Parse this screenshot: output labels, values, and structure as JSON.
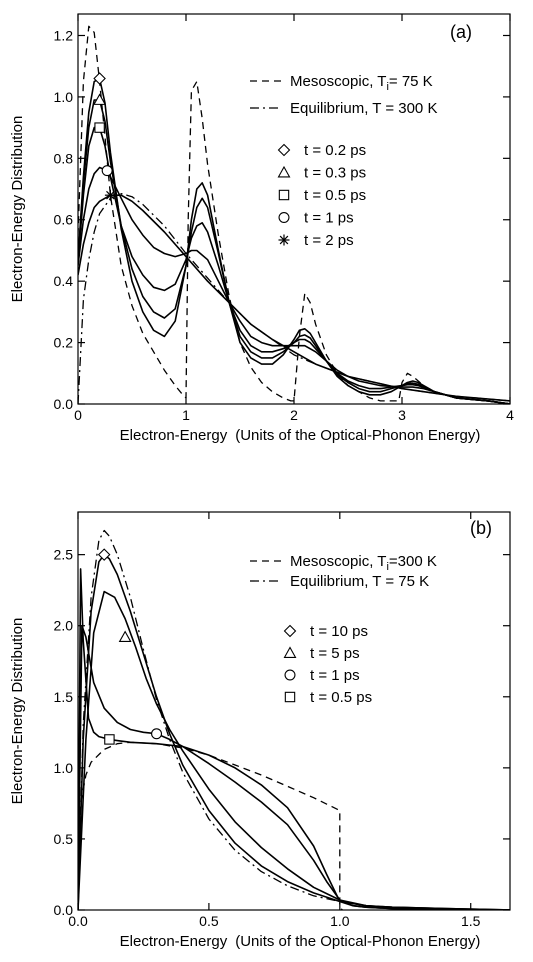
{
  "chart_data": [
    {
      "type": "line",
      "panel_label": "(a)",
      "xlabel": "Electron-Energy",
      "xlabel_units": "(Units of the Optical-Phonon Energy)",
      "ylabel": "Electron-Energy Distribution",
      "xlim": [
        0,
        4
      ],
      "ylim": [
        0,
        1.27
      ],
      "xticks": [
        0,
        1,
        2,
        3,
        4
      ],
      "xtick_labels": [
        "0",
        "1",
        "2",
        "3",
        "4"
      ],
      "yticks": [
        0,
        0.2,
        0.4,
        0.6,
        0.8,
        1.0,
        1.2
      ],
      "ytick_labels": [
        "0.0",
        "0.2",
        "0.4",
        "0.6",
        "0.8",
        "1.0",
        "1.2"
      ],
      "legend": {
        "lines": [
          {
            "style": "dashed",
            "label_main": "Mesoscopic, T",
            "label_sub": "i",
            "label_rest": "= 75 K"
          },
          {
            "style": "dashdot",
            "label_main": "Equilibrium, T = 300 K",
            "label_sub": "",
            "label_rest": ""
          }
        ],
        "markers": [
          {
            "marker": "diamond",
            "label": "t = 0.2 ps"
          },
          {
            "marker": "triangle",
            "label": "t = 0.3 ps"
          },
          {
            "marker": "square",
            "label": "t = 0.5 ps"
          },
          {
            "marker": "circle",
            "label": "t = 1 ps"
          },
          {
            "marker": "asterisk",
            "label": "t = 2 ps"
          }
        ]
      },
      "series": [
        {
          "style": "dashed",
          "x": [
            0,
            0.05,
            0.1,
            0.15,
            0.2,
            0.25,
            0.3,
            0.4,
            0.5,
            0.6,
            0.7,
            0.8,
            0.9,
            0.97,
            1.0,
            1.02,
            1.05,
            1.1,
            1.15,
            1.2,
            1.3,
            1.4,
            1.5,
            1.6,
            1.7,
            1.8,
            1.9,
            1.97,
            2.0,
            2.05,
            2.1,
            2.15,
            2.2,
            2.3,
            2.4,
            2.5,
            2.6,
            2.7,
            2.8,
            2.9,
            2.97,
            3.0,
            3.05,
            3.1,
            3.2,
            3.3,
            3.5,
            3.8,
            4.0
          ],
          "y": [
            0.55,
            1.05,
            1.23,
            1.21,
            1.05,
            0.87,
            0.68,
            0.45,
            0.32,
            0.23,
            0.17,
            0.11,
            0.06,
            0.03,
            0.02,
            0.6,
            1.02,
            1.05,
            0.93,
            0.78,
            0.55,
            0.35,
            0.2,
            0.12,
            0.07,
            0.04,
            0.02,
            0.01,
            0.01,
            0.22,
            0.36,
            0.33,
            0.26,
            0.16,
            0.1,
            0.06,
            0.04,
            0.02,
            0.01,
            0.01,
            0.01,
            0.07,
            0.1,
            0.09,
            0.06,
            0.04,
            0.02,
            0.01,
            0.0
          ]
        },
        {
          "style": "dashdot",
          "x": [
            0,
            0.05,
            0.1,
            0.15,
            0.2,
            0.3,
            0.4,
            0.5,
            0.6,
            0.8,
            1.0,
            1.2,
            1.4,
            1.6,
            1.8,
            2.0,
            2.2,
            2.5,
            3.0,
            3.5,
            4.0
          ],
          "y": [
            0.0,
            0.34,
            0.47,
            0.56,
            0.62,
            0.67,
            0.685,
            0.675,
            0.65,
            0.58,
            0.49,
            0.41,
            0.33,
            0.26,
            0.21,
            0.16,
            0.13,
            0.09,
            0.05,
            0.025,
            0.01
          ]
        },
        {
          "name": "t = 0.2 ps",
          "marker": "diamond",
          "marker_at": [
            0.2,
            1.06
          ],
          "x": [
            0,
            0.05,
            0.1,
            0.15,
            0.2,
            0.25,
            0.3,
            0.4,
            0.5,
            0.6,
            0.7,
            0.8,
            0.9,
            1.0,
            1.05,
            1.1,
            1.15,
            1.2,
            1.3,
            1.4,
            1.5,
            1.6,
            1.7,
            1.8,
            1.9,
            2.0,
            2.05,
            2.1,
            2.15,
            2.2,
            2.3,
            2.4,
            2.5,
            2.6,
            2.7,
            2.8,
            2.9,
            3.0,
            3.05,
            3.1,
            3.15,
            3.2,
            3.3,
            3.5,
            3.8,
            4.0
          ],
          "y": [
            0.47,
            0.74,
            0.95,
            1.05,
            1.06,
            0.98,
            0.82,
            0.57,
            0.4,
            0.3,
            0.24,
            0.22,
            0.27,
            0.45,
            0.6,
            0.7,
            0.72,
            0.68,
            0.5,
            0.33,
            0.2,
            0.15,
            0.13,
            0.13,
            0.16,
            0.21,
            0.24,
            0.245,
            0.23,
            0.2,
            0.14,
            0.09,
            0.06,
            0.04,
            0.03,
            0.03,
            0.04,
            0.06,
            0.07,
            0.075,
            0.07,
            0.06,
            0.04,
            0.02,
            0.01,
            0.0
          ]
        },
        {
          "name": "t = 0.3 ps",
          "marker": "triangle",
          "marker_at": [
            0.2,
            0.99
          ],
          "x": [
            0,
            0.05,
            0.1,
            0.15,
            0.2,
            0.25,
            0.3,
            0.4,
            0.5,
            0.6,
            0.7,
            0.8,
            0.9,
            1.0,
            1.05,
            1.1,
            1.15,
            1.2,
            1.3,
            1.4,
            1.5,
            1.6,
            1.7,
            1.8,
            1.9,
            2.0,
            2.05,
            2.1,
            2.15,
            2.2,
            2.3,
            2.4,
            2.5,
            2.6,
            2.7,
            2.8,
            2.9,
            3.0,
            3.05,
            3.1,
            3.15,
            3.2,
            3.3,
            3.5,
            3.8,
            4.0
          ],
          "y": [
            0.47,
            0.72,
            0.9,
            0.99,
            0.99,
            0.92,
            0.79,
            0.58,
            0.44,
            0.35,
            0.3,
            0.28,
            0.31,
            0.45,
            0.56,
            0.64,
            0.67,
            0.64,
            0.49,
            0.33,
            0.22,
            0.17,
            0.15,
            0.15,
            0.17,
            0.2,
            0.22,
            0.225,
            0.215,
            0.19,
            0.14,
            0.095,
            0.07,
            0.05,
            0.04,
            0.04,
            0.05,
            0.06,
            0.066,
            0.068,
            0.064,
            0.056,
            0.04,
            0.02,
            0.01,
            0.0
          ]
        },
        {
          "name": "t = 0.5 ps",
          "marker": "square",
          "marker_at": [
            0.2,
            0.9
          ],
          "x": [
            0,
            0.05,
            0.1,
            0.15,
            0.2,
            0.25,
            0.3,
            0.4,
            0.5,
            0.6,
            0.7,
            0.8,
            0.9,
            1.0,
            1.05,
            1.1,
            1.15,
            1.2,
            1.3,
            1.4,
            1.5,
            1.6,
            1.7,
            1.8,
            1.9,
            2.0,
            2.05,
            2.1,
            2.15,
            2.2,
            2.3,
            2.4,
            2.5,
            2.6,
            2.7,
            2.8,
            2.9,
            3.0,
            3.05,
            3.1,
            3.15,
            3.2,
            3.3,
            3.5,
            3.8,
            4.0
          ],
          "y": [
            0.46,
            0.68,
            0.84,
            0.9,
            0.9,
            0.84,
            0.74,
            0.58,
            0.48,
            0.42,
            0.38,
            0.37,
            0.39,
            0.47,
            0.54,
            0.58,
            0.59,
            0.56,
            0.45,
            0.33,
            0.24,
            0.19,
            0.17,
            0.17,
            0.18,
            0.2,
            0.21,
            0.21,
            0.2,
            0.18,
            0.14,
            0.1,
            0.075,
            0.06,
            0.05,
            0.05,
            0.055,
            0.06,
            0.063,
            0.063,
            0.06,
            0.054,
            0.04,
            0.02,
            0.01,
            0.0
          ]
        },
        {
          "name": "t = 1 ps",
          "marker": "circle",
          "marker_at": [
            0.27,
            0.76
          ],
          "x": [
            0,
            0.05,
            0.1,
            0.15,
            0.2,
            0.27,
            0.3,
            0.4,
            0.5,
            0.6,
            0.7,
            0.8,
            0.9,
            1.0,
            1.05,
            1.1,
            1.2,
            1.3,
            1.4,
            1.5,
            1.6,
            1.7,
            1.8,
            1.9,
            2.0,
            2.1,
            2.2,
            2.3,
            2.4,
            2.5,
            2.6,
            2.8,
            3.0,
            3.1,
            3.2,
            3.3,
            3.5,
            3.8,
            4.0
          ],
          "y": [
            0.45,
            0.6,
            0.7,
            0.75,
            0.77,
            0.76,
            0.74,
            0.67,
            0.6,
            0.55,
            0.51,
            0.49,
            0.48,
            0.49,
            0.5,
            0.5,
            0.47,
            0.4,
            0.33,
            0.27,
            0.22,
            0.2,
            0.19,
            0.19,
            0.19,
            0.19,
            0.17,
            0.14,
            0.11,
            0.09,
            0.075,
            0.06,
            0.055,
            0.055,
            0.05,
            0.04,
            0.02,
            0.01,
            0.0
          ]
        },
        {
          "name": "t = 2 ps",
          "marker": "asterisk",
          "marker_at": [
            0.3,
            0.68
          ],
          "x": [
            0,
            0.05,
            0.1,
            0.15,
            0.2,
            0.3,
            0.4,
            0.5,
            0.6,
            0.8,
            1.0,
            1.2,
            1.4,
            1.6,
            1.8,
            2.0,
            2.2,
            2.5,
            3.0,
            3.5,
            4.0
          ],
          "y": [
            0.42,
            0.52,
            0.59,
            0.64,
            0.66,
            0.68,
            0.68,
            0.66,
            0.63,
            0.56,
            0.48,
            0.4,
            0.33,
            0.26,
            0.21,
            0.17,
            0.13,
            0.09,
            0.05,
            0.025,
            0.01
          ]
        }
      ]
    },
    {
      "type": "line",
      "panel_label": "(b)",
      "xlabel": "Electron-Energy",
      "xlabel_units": "(Units of the Optical-Phonon Energy)",
      "ylabel": "Electron-Energy Distribution",
      "xlim": [
        0,
        1.65
      ],
      "ylim": [
        0,
        2.8
      ],
      "xticks": [
        0,
        0.5,
        1.0,
        1.5
      ],
      "xtick_labels": [
        "0.0",
        "0.5",
        "1.0",
        "1.5"
      ],
      "yticks": [
        0,
        0.5,
        1.0,
        1.5,
        2.0,
        2.5
      ],
      "ytick_labels": [
        "0.0",
        "0.5",
        "1.0",
        "1.5",
        "2.0",
        "2.5"
      ],
      "legend": {
        "lines": [
          {
            "style": "dashed",
            "label_main": "Mesoscopic, T",
            "label_sub": "i",
            "label_rest": "=300 K"
          },
          {
            "style": "dashdot",
            "label_main": "Equilibrium, T = 75 K",
            "label_sub": "",
            "label_rest": ""
          }
        ],
        "markers": [
          {
            "marker": "diamond",
            "label": "t = 10 ps"
          },
          {
            "marker": "triangle",
            "label": "t = 5 ps"
          },
          {
            "marker": "circle",
            "label": "t = 1 ps"
          },
          {
            "marker": "square",
            "label": "t = 0.5 ps"
          }
        ]
      },
      "series": [
        {
          "style": "dashed",
          "x": [
            0,
            0.01,
            0.03,
            0.05,
            0.1,
            0.15,
            0.2,
            0.3,
            0.4,
            0.5,
            0.6,
            0.7,
            0.8,
            0.9,
            1.0,
            1.0,
            1.01
          ],
          "y": [
            0.0,
            0.75,
            0.95,
            1.04,
            1.13,
            1.17,
            1.18,
            1.17,
            1.14,
            1.09,
            1.02,
            0.95,
            0.87,
            0.79,
            0.7,
            0.02,
            0.0
          ]
        },
        {
          "style": "dashdot",
          "x": [
            0,
            0.02,
            0.05,
            0.08,
            0.1,
            0.12,
            0.15,
            0.2,
            0.25,
            0.3,
            0.35,
            0.4,
            0.5,
            0.6,
            0.7,
            0.8,
            0.9,
            1.0,
            1.1,
            1.2,
            1.4,
            1.65
          ],
          "y": [
            0.0,
            1.3,
            2.2,
            2.6,
            2.67,
            2.63,
            2.5,
            2.2,
            1.83,
            1.48,
            1.2,
            0.97,
            0.64,
            0.42,
            0.27,
            0.17,
            0.1,
            0.06,
            0.03,
            0.02,
            0.01,
            0.0
          ]
        },
        {
          "name": "t = 10 ps",
          "marker": "diamond",
          "marker_at": [
            0.1,
            2.5
          ],
          "x": [
            0,
            0.02,
            0.05,
            0.08,
            0.1,
            0.12,
            0.15,
            0.2,
            0.25,
            0.3,
            0.35,
            0.4,
            0.5,
            0.6,
            0.7,
            0.8,
            0.9,
            1.0,
            1.1,
            1.2,
            1.4,
            1.65
          ],
          "y": [
            0.0,
            1.2,
            2.1,
            2.45,
            2.5,
            2.47,
            2.36,
            2.1,
            1.8,
            1.5,
            1.24,
            1.02,
            0.7,
            0.47,
            0.31,
            0.2,
            0.12,
            0.06,
            0.03,
            0.02,
            0.01,
            0.0
          ]
        },
        {
          "name": "t = 5 ps",
          "marker": "triangle",
          "marker_at": [
            0.18,
            1.92
          ],
          "x": [
            0,
            0.03,
            0.06,
            0.1,
            0.14,
            0.18,
            0.22,
            0.26,
            0.3,
            0.35,
            0.4,
            0.5,
            0.6,
            0.7,
            0.8,
            0.9,
            1.0,
            1.1,
            1.2,
            1.4,
            1.65
          ],
          "y": [
            0.0,
            1.2,
            1.95,
            2.24,
            2.2,
            2.05,
            1.85,
            1.63,
            1.45,
            1.27,
            1.12,
            0.85,
            0.62,
            0.44,
            0.29,
            0.16,
            0.07,
            0.03,
            0.02,
            0.01,
            0.0
          ]
        },
        {
          "name": "t = 1 ps",
          "marker": "circle",
          "marker_at": [
            0.3,
            1.24
          ],
          "x": [
            0,
            0.015,
            0.03,
            0.06,
            0.1,
            0.15,
            0.2,
            0.25,
            0.3,
            0.35,
            0.4,
            0.5,
            0.6,
            0.7,
            0.8,
            0.9,
            0.95,
            1.0,
            1.05,
            1.1,
            1.2,
            1.4,
            1.65
          ],
          "y": [
            0.0,
            2.0,
            1.92,
            1.6,
            1.42,
            1.32,
            1.27,
            1.25,
            1.24,
            1.2,
            1.15,
            1.03,
            0.9,
            0.76,
            0.6,
            0.35,
            0.2,
            0.07,
            0.03,
            0.02,
            0.01,
            0.005,
            0.0
          ]
        },
        {
          "name": "t = 0.5 ps",
          "marker": "square",
          "marker_at": [
            0.12,
            1.2
          ],
          "x": [
            0,
            0.01,
            0.02,
            0.04,
            0.06,
            0.08,
            0.12,
            0.16,
            0.2,
            0.3,
            0.4,
            0.5,
            0.6,
            0.7,
            0.8,
            0.9,
            0.95,
            1.0,
            1.05,
            1.1,
            1.2,
            1.4,
            1.65
          ],
          "y": [
            0.0,
            2.4,
            1.9,
            1.35,
            1.25,
            1.22,
            1.2,
            1.19,
            1.18,
            1.17,
            1.15,
            1.09,
            1.0,
            0.88,
            0.72,
            0.45,
            0.25,
            0.06,
            0.03,
            0.02,
            0.01,
            0.005,
            0.0
          ]
        }
      ]
    }
  ]
}
